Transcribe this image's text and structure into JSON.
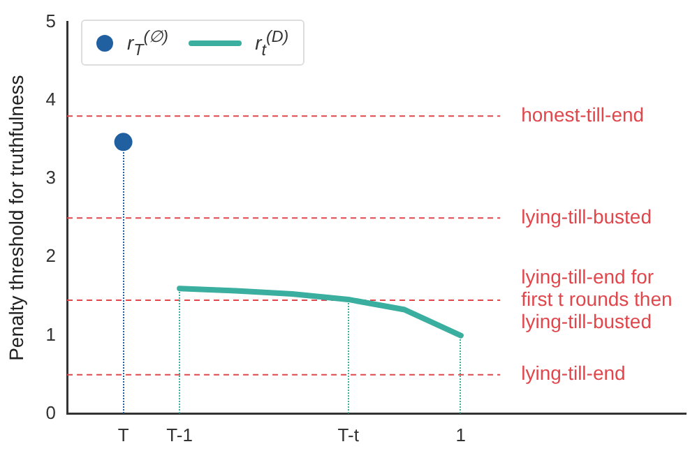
{
  "chart_data": {
    "type": "line",
    "ylabel": "Penalty threshold for truthfulness",
    "categories": [
      null,
      "T",
      "T-1",
      null,
      null,
      "T-t",
      null,
      "1",
      null,
      null,
      null,
      null
    ],
    "ylim": [
      0,
      5
    ],
    "yticks": [
      0,
      1,
      2,
      3,
      4,
      5
    ],
    "series": [
      {
        "name": "r$_{T}$$^{(∅)}$",
        "type": "scatter",
        "marker": "circle",
        "color": "#2060a0",
        "values": [
          null,
          3.47,
          null,
          null,
          null,
          null,
          null,
          null,
          null,
          null,
          null,
          null
        ]
      },
      {
        "name": "r$_{t}$$^{(D)}$",
        "marker": "none",
        "color": "#3aae9f",
        "values": [
          null,
          null,
          1.6,
          1.57,
          1.53,
          1.46,
          1.33,
          1.0,
          null,
          null,
          null,
          null
        ]
      }
    ],
    "ref_lines": [
      {
        "axis": "y",
        "value": 3.8,
        "label": "honest-till-end",
        "color": "#e0474c",
        "line_style": "dashed"
      },
      {
        "axis": "y",
        "value": 2.5,
        "label": "lying-till-busted",
        "color": "#e0474c",
        "line_style": "dashed"
      },
      {
        "axis": "y",
        "value": 1.45,
        "label": "lying-till-end for first t rounds then lying-till-busted",
        "color": "#e0474c",
        "line_style": "dashed"
      },
      {
        "axis": "y",
        "value": 0.5,
        "label": "lying-till-end",
        "color": "#e0474c",
        "line_style": "dashed"
      }
    ],
    "grid": false,
    "legend": "top left"
  }
}
